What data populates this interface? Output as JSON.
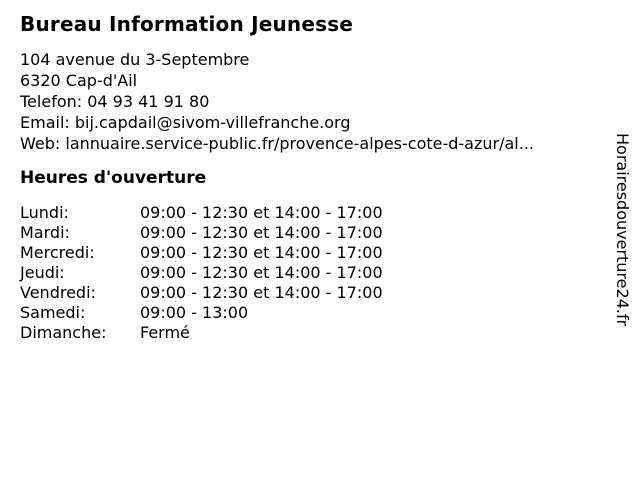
{
  "header": {
    "title": "Bureau Information Jeunesse"
  },
  "contact": {
    "address_line1": "104 avenue du 3-Septembre",
    "address_line2": "6320 Cap-d'Ail",
    "phone_label": "Telefon:",
    "phone": "04 93 41 91 80",
    "email_label": "Email:",
    "email": "bij.capdail@sivom-villefranche.org",
    "web_label": "Web:",
    "web": "lannuaire.service-public.fr/provence-alpes-cote-d-azur/al..."
  },
  "hours": {
    "heading": "Heures d'ouverture",
    "rows": [
      {
        "day": "Lundi:",
        "time": "09:00 - 12:30 et 14:00 - 17:00"
      },
      {
        "day": "Mardi:",
        "time": "09:00 - 12:30 et 14:00 - 17:00"
      },
      {
        "day": "Mercredi:",
        "time": "09:00 - 12:30 et 14:00 - 17:00"
      },
      {
        "day": "Jeudi:",
        "time": "09:00 - 12:30 et 14:00 - 17:00"
      },
      {
        "day": "Vendredi:",
        "time": "09:00 - 12:30 et 14:00 - 17:00"
      },
      {
        "day": "Samedi:",
        "time": "09:00 - 13:00"
      },
      {
        "day": "Dimanche:",
        "time": "Fermé"
      }
    ]
  },
  "watermark": {
    "site_name": "Horairesdouverture24.fr"
  }
}
